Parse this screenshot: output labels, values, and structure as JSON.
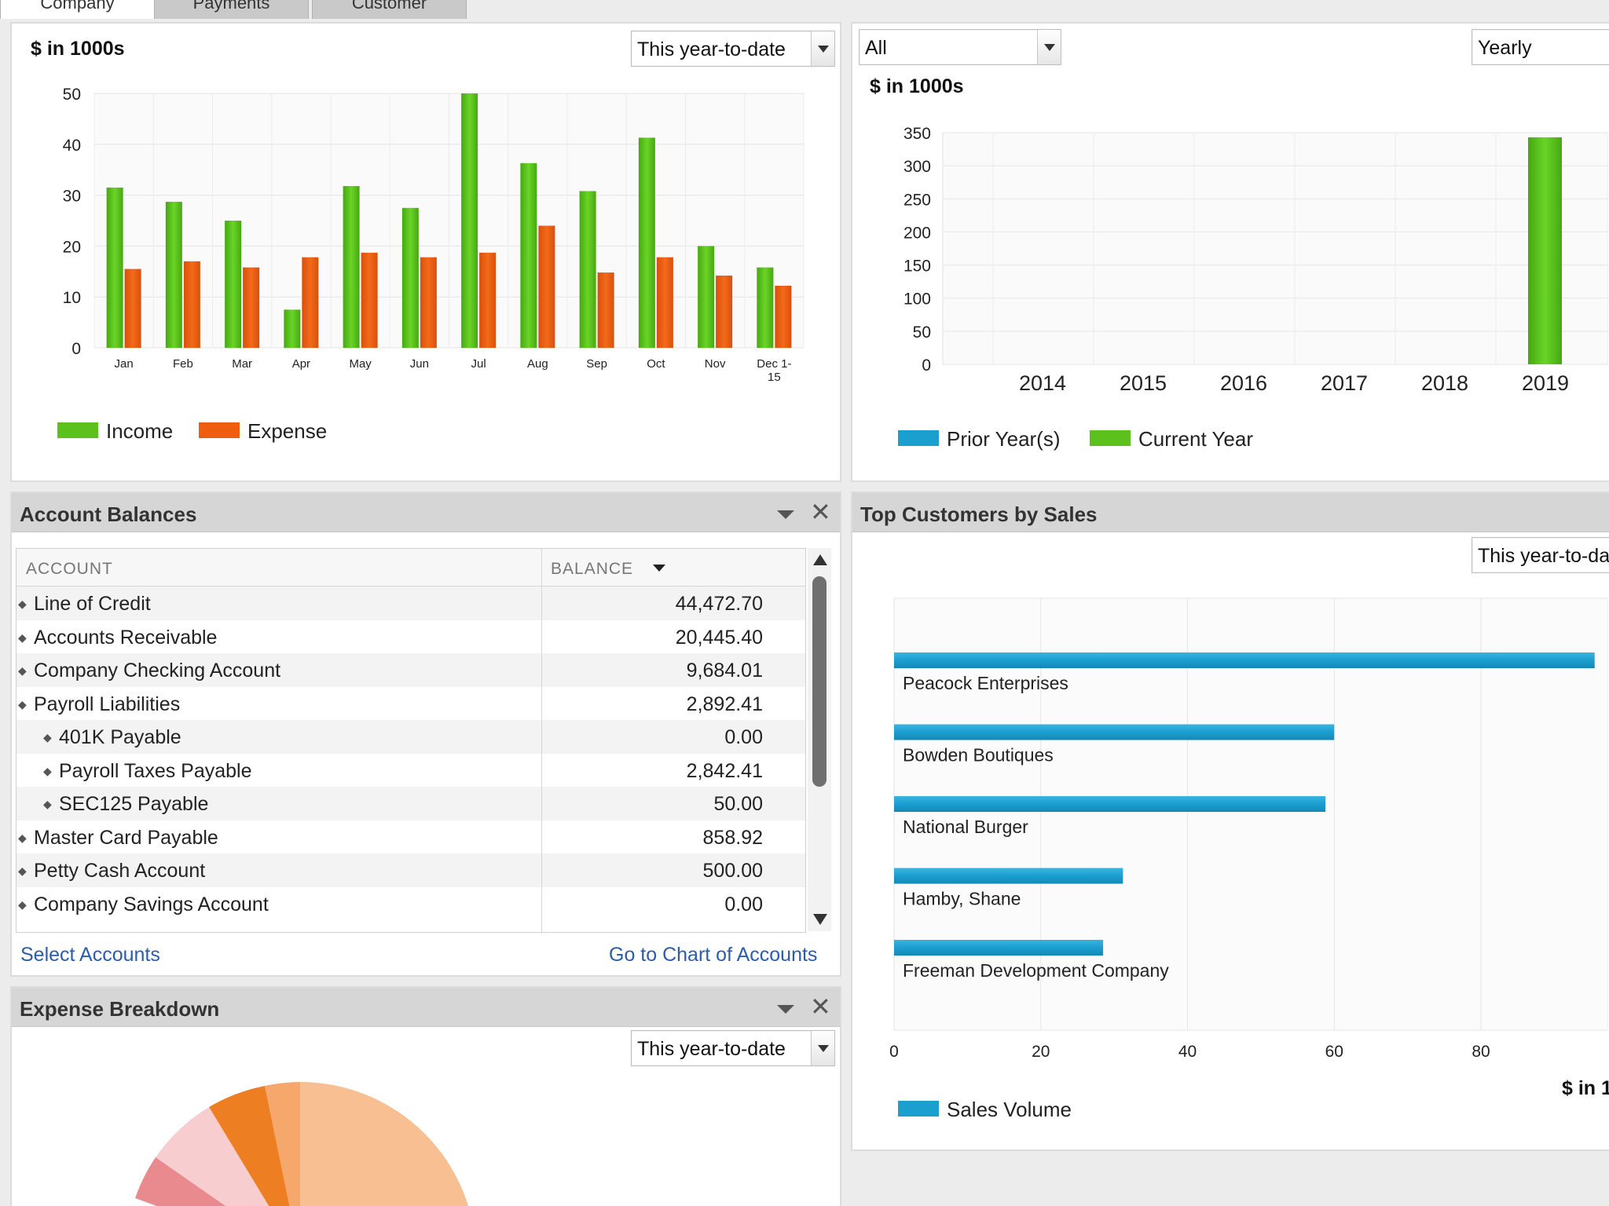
{
  "tabs": [
    {
      "label": "Company"
    },
    {
      "label": "Payments"
    },
    {
      "label": "Customer"
    }
  ],
  "income_expense": {
    "unit_label": "$ in 1000s",
    "period": "This year-to-date",
    "legend": [
      "Income",
      "Expense"
    ],
    "colors": {
      "income": "#5cc11c",
      "expense": "#ee5d10"
    }
  },
  "prior_current": {
    "filter": "All",
    "interval": "Yearly",
    "unit_label": "$ in 1000s",
    "legend": [
      "Prior Year(s)",
      "Current Year"
    ],
    "colors": {
      "prior": "#1b9fcf",
      "current": "#5cc11c"
    }
  },
  "account_balances": {
    "title": "Account Balances",
    "col_account": "ACCOUNT",
    "col_balance": "BALANCE",
    "rows": [
      {
        "name": "Line of Credit",
        "balance": "44,472.70",
        "level": 0
      },
      {
        "name": "Accounts Receivable",
        "balance": "20,445.40",
        "level": 0
      },
      {
        "name": "Company Checking Account",
        "balance": "9,684.01",
        "level": 0
      },
      {
        "name": "Payroll Liabilities",
        "balance": "2,892.41",
        "level": 0
      },
      {
        "name": "401K Payable",
        "balance": "0.00",
        "level": 1
      },
      {
        "name": "Payroll Taxes Payable",
        "balance": "2,842.41",
        "level": 1
      },
      {
        "name": "SEC125 Payable",
        "balance": "50.00",
        "level": 1
      },
      {
        "name": "Master Card Payable",
        "balance": "858.92",
        "level": 0
      },
      {
        "name": "Petty Cash Account",
        "balance": "500.00",
        "level": 0
      },
      {
        "name": "Company Savings Account",
        "balance": "0.00",
        "level": 0
      }
    ],
    "link_select": "Select Accounts",
    "link_chart": "Go to Chart of Accounts"
  },
  "expense_breakdown": {
    "title": "Expense Breakdown",
    "period": "This year-to-date"
  },
  "top_customers": {
    "title": "Top Customers by Sales",
    "period": "This year-to-da",
    "unit_label": "$ in 1",
    "legend": [
      "Sales Volume"
    ],
    "color": "#1b9fcf"
  },
  "chart_data": [
    {
      "type": "bar",
      "title": "",
      "ylabel": "$ in 1000s",
      "categories": [
        "Jan",
        "Feb",
        "Mar",
        "Apr",
        "May",
        "Jun",
        "Jul",
        "Aug",
        "Sep",
        "Oct",
        "Nov",
        "Dec 1-15"
      ],
      "category_lines": [
        [
          "Jan"
        ],
        [
          "Feb"
        ],
        [
          "Mar"
        ],
        [
          "Apr"
        ],
        [
          "May"
        ],
        [
          "Jun"
        ],
        [
          "Jul"
        ],
        [
          "Aug"
        ],
        [
          "Sep"
        ],
        [
          "Oct"
        ],
        [
          "Nov"
        ],
        [
          "Dec 1-",
          "15"
        ]
      ],
      "series": [
        {
          "name": "Income",
          "values": [
            31.5,
            28.7,
            25,
            7.5,
            31.8,
            27.5,
            50,
            36.3,
            30.8,
            41.3,
            20,
            15.8
          ]
        },
        {
          "name": "Expense",
          "values": [
            15.5,
            17,
            15.8,
            17.8,
            18.7,
            17.8,
            18.7,
            24,
            14.8,
            17.8,
            14.2,
            12.2
          ]
        }
      ],
      "ylim": [
        0,
        50
      ],
      "yticks": [
        0,
        10,
        20,
        30,
        40,
        50
      ],
      "grid": true,
      "legend": "bottom-left"
    },
    {
      "type": "bar",
      "title": "",
      "ylabel": "$ in 1000s",
      "categories": [
        "2014",
        "2015",
        "2016",
        "2017",
        "2018",
        "2019"
      ],
      "series": [
        {
          "name": "Prior Year(s)",
          "values": [
            0,
            0,
            0,
            0,
            0,
            0
          ]
        },
        {
          "name": "Current Year",
          "values": [
            0,
            0,
            0,
            0,
            0,
            343
          ]
        }
      ],
      "ylim": [
        0,
        350
      ],
      "yticks": [
        0,
        50,
        100,
        150,
        200,
        250,
        300,
        350
      ],
      "grid": true,
      "legend": "bottom-left"
    },
    {
      "type": "bar",
      "orientation": "horizontal",
      "title": "Top Customers by Sales",
      "categories": [
        "Peacock Enterprises",
        "Bowden Boutiques",
        "National Burger",
        "Hamby, Shane",
        "Freeman Development Company"
      ],
      "series": [
        {
          "name": "Sales Volume",
          "values": [
            95.5,
            60,
            58.8,
            31.2,
            28.5
          ]
        }
      ],
      "xticks": [
        0,
        20,
        40,
        60,
        80
      ],
      "grid": true,
      "legend": "bottom-left"
    },
    {
      "type": "pie",
      "title": "Expense Breakdown"
    }
  ]
}
